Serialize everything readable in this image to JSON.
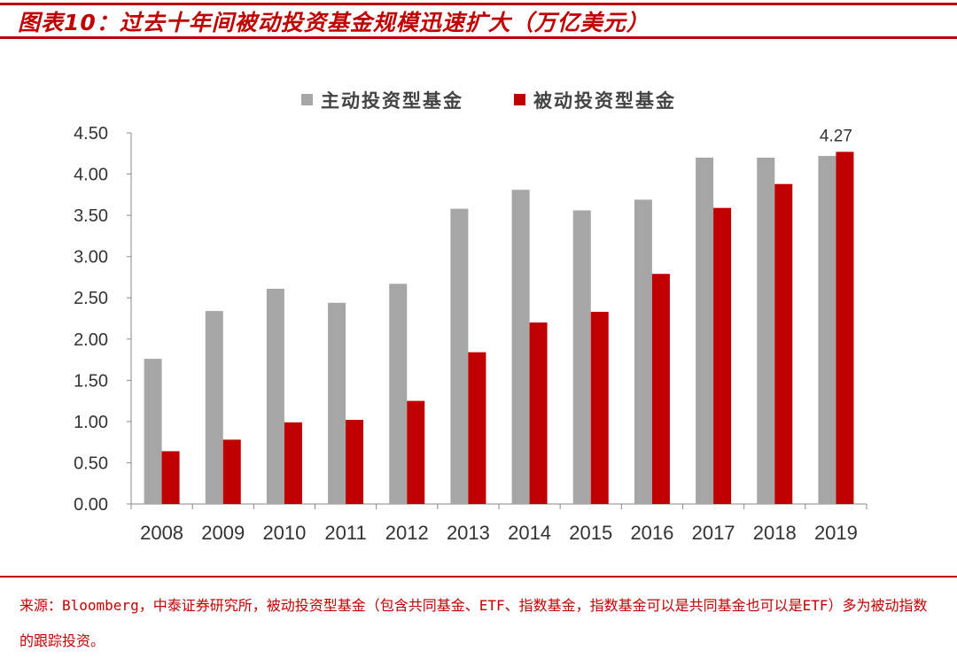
{
  "title": "图表10：过去十年间被动投资基金规模迅速扩大（万亿美元）",
  "source": "来源：Bloomberg，中泰证券研究所，被动投资型基金（包含共同基金、ETF、指数基金，指数基金可以是共同基金也可以是ETF）多为被动指数的跟踪投资。",
  "chart_data": {
    "type": "bar",
    "title": "",
    "xlabel": "",
    "ylabel": "",
    "ylim": [
      0,
      4.5
    ],
    "yticks": [
      "0.00",
      "0.50",
      "1.00",
      "1.50",
      "2.00",
      "2.50",
      "3.00",
      "3.50",
      "4.00",
      "4.50"
    ],
    "grid": false,
    "legend_position": "top",
    "categories": [
      "2008",
      "2009",
      "2010",
      "2011",
      "2012",
      "2013",
      "2014",
      "2015",
      "2016",
      "2017",
      "2018",
      "2019"
    ],
    "series": [
      {
        "name": "主动投资型基金",
        "color": "#a6a6a6",
        "values": [
          1.76,
          2.34,
          2.61,
          2.44,
          2.67,
          3.58,
          3.81,
          3.56,
          3.69,
          4.2,
          4.2,
          4.22
        ]
      },
      {
        "name": "被动投资型基金",
        "color": "#c00000",
        "values": [
          0.64,
          0.78,
          0.99,
          1.02,
          1.25,
          1.84,
          2.2,
          2.33,
          2.79,
          3.59,
          3.88,
          4.27
        ]
      }
    ],
    "annotations": [
      {
        "category": "2019",
        "series": "被动投资型基金",
        "text": "4.27"
      }
    ]
  }
}
